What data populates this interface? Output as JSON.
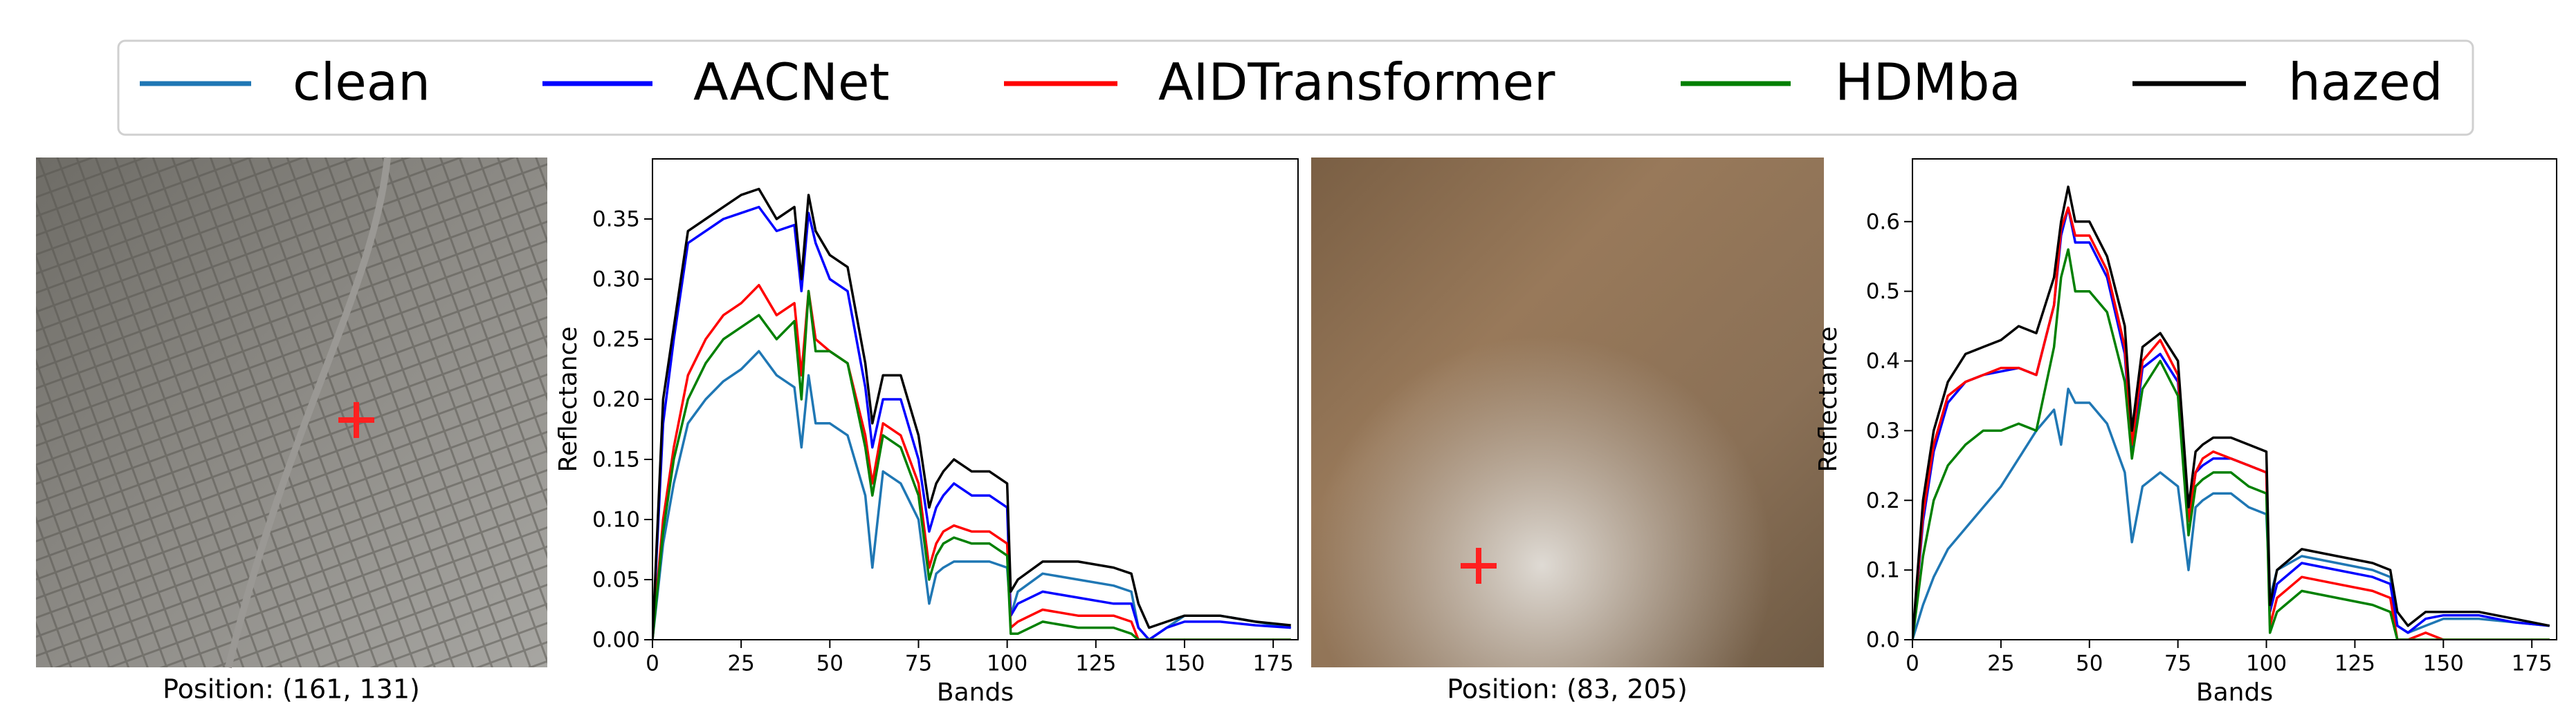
{
  "captions": [
    "Position: (161, 131)",
    "Position: (83, 205)"
  ],
  "chart_data": [
    {
      "type": "line",
      "xlabel": "Bands",
      "ylabel": "Reflectance",
      "x": [
        0,
        3,
        6,
        10,
        15,
        20,
        25,
        30,
        35,
        40,
        42,
        44,
        46,
        50,
        55,
        60,
        62,
        65,
        70,
        75,
        78,
        80,
        82,
        85,
        90,
        95,
        100,
        101,
        103,
        110,
        120,
        130,
        135,
        137,
        140,
        145,
        150,
        160,
        170,
        180
      ],
      "xlim": [
        0,
        182
      ],
      "xticks": [
        0,
        25,
        50,
        75,
        100,
        125,
        150,
        175
      ],
      "ylim": [
        0,
        0.4
      ],
      "yticks": [
        {
          "value": 0,
          "label": "0.00"
        },
        0.05,
        {
          "value": 0.1,
          "label": "0.10"
        },
        0.15,
        {
          "value": 0.2,
          "label": "0.20"
        },
        0.25,
        {
          "value": 0.3,
          "label": "0.30"
        },
        0.35
      ],
      "legend": "top",
      "series": [
        {
          "name": "clean",
          "color": "#1f77b4",
          "values": [
            0,
            0.08,
            0.13,
            0.18,
            0.2,
            0.215,
            0.225,
            0.24,
            0.22,
            0.21,
            0.16,
            0.22,
            0.18,
            0.18,
            0.17,
            0.12,
            0.06,
            0.14,
            0.13,
            0.1,
            0.03,
            0.055,
            0.06,
            0.065,
            0.065,
            0.065,
            0.06,
            0.02,
            0.04,
            0.055,
            0.05,
            0.045,
            0.04,
            0.01,
            0,
            0.01,
            0.02,
            0.02,
            0.015,
            0.01
          ]
        },
        {
          "name": "AACNet",
          "color": "#0000ff",
          "values": [
            0,
            0.18,
            0.25,
            0.33,
            0.34,
            0.35,
            0.355,
            0.36,
            0.34,
            0.345,
            0.29,
            0.355,
            0.33,
            0.3,
            0.29,
            0.21,
            0.16,
            0.2,
            0.2,
            0.15,
            0.09,
            0.11,
            0.12,
            0.13,
            0.12,
            0.12,
            0.11,
            0.02,
            0.03,
            0.04,
            0.035,
            0.03,
            0.03,
            0.01,
            0,
            0.01,
            0.015,
            0.015,
            0.012,
            0.01
          ]
        },
        {
          "name": "AIDTransformer",
          "color": "#ff0000",
          "values": [
            0,
            0.1,
            0.16,
            0.22,
            0.25,
            0.27,
            0.28,
            0.295,
            0.27,
            0.28,
            0.22,
            0.29,
            0.25,
            0.24,
            0.23,
            0.17,
            0.13,
            0.18,
            0.17,
            0.13,
            0.06,
            0.08,
            0.09,
            0.095,
            0.09,
            0.09,
            0.08,
            0.01,
            0.015,
            0.025,
            0.02,
            0.02,
            0.015,
            0,
            0,
            0,
            0,
            0,
            0,
            0
          ]
        },
        {
          "name": "HDMba",
          "color": "#008000",
          "values": [
            0,
            0.09,
            0.15,
            0.2,
            0.23,
            0.25,
            0.26,
            0.27,
            0.25,
            0.265,
            0.2,
            0.29,
            0.24,
            0.24,
            0.23,
            0.16,
            0.12,
            0.17,
            0.16,
            0.12,
            0.05,
            0.07,
            0.08,
            0.085,
            0.08,
            0.08,
            0.07,
            0.005,
            0.005,
            0.015,
            0.01,
            0.01,
            0.005,
            0,
            0,
            0,
            0,
            0,
            0,
            0
          ]
        },
        {
          "name": "hazed",
          "color": "#000000",
          "values": [
            0,
            0.2,
            0.26,
            0.34,
            0.35,
            0.36,
            0.37,
            0.375,
            0.35,
            0.36,
            0.3,
            0.37,
            0.34,
            0.32,
            0.31,
            0.23,
            0.18,
            0.22,
            0.22,
            0.17,
            0.11,
            0.13,
            0.14,
            0.15,
            0.14,
            0.14,
            0.13,
            0.04,
            0.05,
            0.065,
            0.065,
            0.06,
            0.055,
            0.03,
            0.01,
            0.015,
            0.02,
            0.02,
            0.015,
            0.012
          ]
        }
      ]
    },
    {
      "type": "line",
      "xlabel": "Bands",
      "ylabel": "Reflectance",
      "x": [
        0,
        3,
        6,
        10,
        15,
        20,
        25,
        30,
        35,
        40,
        42,
        44,
        46,
        50,
        55,
        60,
        62,
        65,
        70,
        75,
        78,
        80,
        82,
        85,
        90,
        95,
        100,
        101,
        103,
        110,
        120,
        130,
        135,
        137,
        140,
        145,
        150,
        160,
        170,
        180
      ],
      "xlim": [
        0,
        182
      ],
      "xticks": [
        0,
        25,
        50,
        75,
        100,
        125,
        150,
        175
      ],
      "ylim": [
        0,
        0.69
      ],
      "yticks": [
        {
          "value": 0,
          "label": "0.0"
        },
        0.1,
        0.2,
        0.3,
        0.4,
        0.5,
        0.6
      ],
      "series": [
        {
          "name": "clean",
          "color": "#1f77b4",
          "values": [
            0,
            0.05,
            0.09,
            0.13,
            0.16,
            0.19,
            0.22,
            0.26,
            0.3,
            0.33,
            0.28,
            0.36,
            0.34,
            0.34,
            0.31,
            0.24,
            0.14,
            0.22,
            0.24,
            0.22,
            0.1,
            0.19,
            0.2,
            0.21,
            0.21,
            0.19,
            0.18,
            0.06,
            0.1,
            0.12,
            0.11,
            0.1,
            0.09,
            0.02,
            0.01,
            0.02,
            0.03,
            0.03,
            0.025,
            0.02
          ]
        },
        {
          "name": "AACNet",
          "color": "#0000ff",
          "values": [
            0,
            0.17,
            0.27,
            0.34,
            0.37,
            0.38,
            0.385,
            0.39,
            0.38,
            0.48,
            0.58,
            0.62,
            0.57,
            0.57,
            0.52,
            0.41,
            0.27,
            0.39,
            0.41,
            0.37,
            0.17,
            0.24,
            0.25,
            0.26,
            0.26,
            0.25,
            0.24,
            0.04,
            0.08,
            0.11,
            0.1,
            0.09,
            0.08,
            0.02,
            0.01,
            0.03,
            0.035,
            0.035,
            0.025,
            0.02
          ]
        },
        {
          "name": "AIDTransformer",
          "color": "#ff0000",
          "values": [
            0,
            0.18,
            0.28,
            0.35,
            0.37,
            0.38,
            0.39,
            0.39,
            0.38,
            0.48,
            0.59,
            0.62,
            0.58,
            0.58,
            0.53,
            0.42,
            0.28,
            0.4,
            0.43,
            0.38,
            0.17,
            0.24,
            0.26,
            0.27,
            0.26,
            0.25,
            0.24,
            0.02,
            0.06,
            0.09,
            0.08,
            0.07,
            0.06,
            0,
            0,
            0.01,
            0,
            0,
            0,
            0
          ]
        },
        {
          "name": "HDMba",
          "color": "#008000",
          "values": [
            0,
            0.12,
            0.2,
            0.25,
            0.28,
            0.3,
            0.3,
            0.31,
            0.3,
            0.42,
            0.52,
            0.56,
            0.5,
            0.5,
            0.47,
            0.37,
            0.26,
            0.36,
            0.4,
            0.35,
            0.15,
            0.22,
            0.23,
            0.24,
            0.24,
            0.22,
            0.21,
            0.01,
            0.04,
            0.07,
            0.06,
            0.05,
            0.04,
            0,
            0,
            0,
            0,
            0,
            0,
            0
          ]
        },
        {
          "name": "hazed",
          "color": "#000000",
          "values": [
            0,
            0.2,
            0.3,
            0.37,
            0.41,
            0.42,
            0.43,
            0.45,
            0.44,
            0.52,
            0.6,
            0.65,
            0.6,
            0.6,
            0.55,
            0.45,
            0.3,
            0.42,
            0.44,
            0.4,
            0.19,
            0.27,
            0.28,
            0.29,
            0.29,
            0.28,
            0.27,
            0.05,
            0.1,
            0.13,
            0.12,
            0.11,
            0.1,
            0.04,
            0.02,
            0.04,
            0.04,
            0.04,
            0.03,
            0.02
          ]
        }
      ]
    }
  ]
}
